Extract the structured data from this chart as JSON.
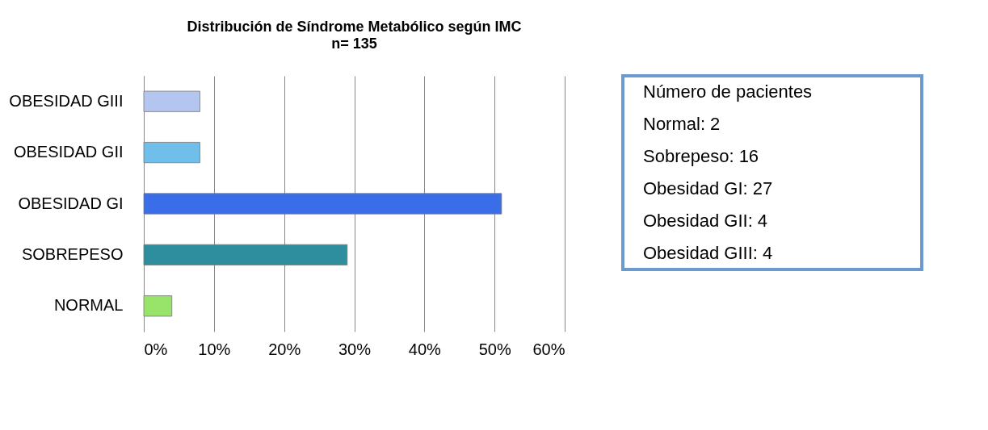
{
  "chart_data": {
    "type": "bar",
    "orientation": "horizontal",
    "title": "Distribución de Síndrome Metabólico según IMC",
    "subtitle": "n= 135",
    "categories": [
      "OBESIDAD GIII",
      "OBESIDAD GII",
      "OBESIDAD GI",
      "SOBREPESO",
      "NORMAL"
    ],
    "values": [
      8,
      8,
      51,
      29,
      4
    ],
    "colors": [
      "#b4c6f0",
      "#6fbfea",
      "#3a6ee8",
      "#2e8e9e",
      "#98e46a"
    ],
    "xlim": [
      0,
      60
    ],
    "xticks": [
      {
        "value": 0,
        "label": "0%"
      },
      {
        "value": 10,
        "label": "10%"
      },
      {
        "value": 20,
        "label": "20%"
      },
      {
        "value": 30,
        "label": "30%"
      },
      {
        "value": 40,
        "label": "40%"
      },
      {
        "value": 50,
        "label": "50%"
      },
      {
        "value": 60,
        "label": "60%"
      }
    ],
    "grid": "x",
    "annotations": [
      "Número de pacientes",
      "Normal: 2",
      "Sobrepeso: 16",
      "Obesidad GI: 27",
      "Obesidad GII: 4",
      "Obesidad GIII: 4"
    ]
  }
}
